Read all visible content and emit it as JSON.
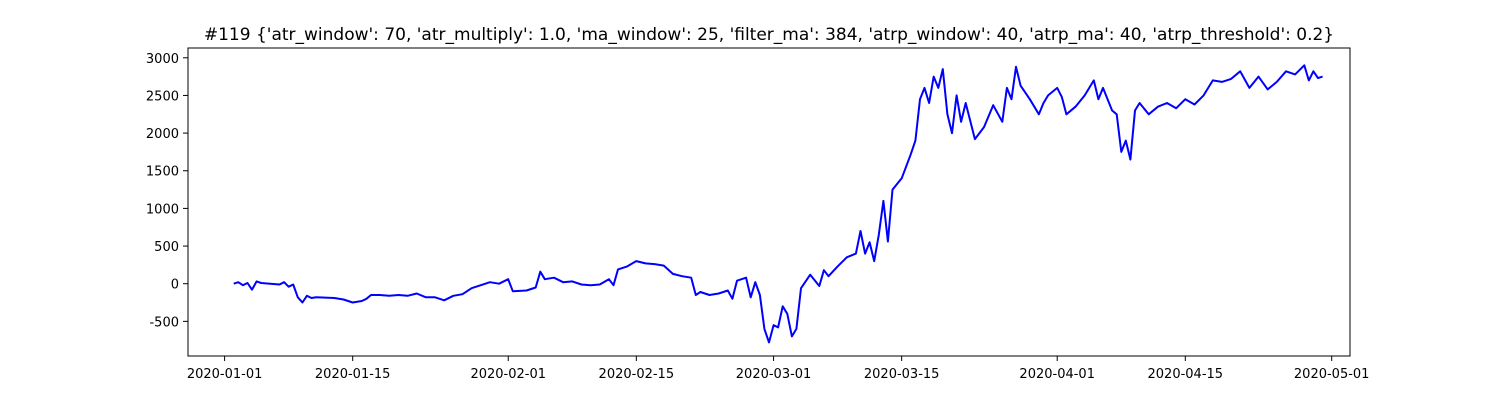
{
  "chart_data": {
    "type": "line",
    "title": "#119 {'atr_window': 70, 'atr_multiply': 1.0, 'ma_window': 25, 'filter_ma': 384, 'atrp_window': 40, 'atrp_ma': 40, 'atrp_threshold': 0.2}",
    "xlabel": "",
    "ylabel": "",
    "x_ticks": [
      "2020-01-01",
      "2020-01-15",
      "2020-02-01",
      "2020-02-15",
      "2020-03-01",
      "2020-03-15",
      "2020-04-01",
      "2020-04-15",
      "2020-05-01"
    ],
    "y_ticks": [
      -500,
      0,
      500,
      1000,
      1500,
      2000,
      2500,
      3000
    ],
    "xlim": [
      "2019-12-28",
      "2020-05-03"
    ],
    "ylim": [
      -960,
      3130
    ],
    "grid": false,
    "series": [
      {
        "color": "#0000ff",
        "points": [
          [
            "2020-01-02",
            0
          ],
          [
            "2020-01-02T12",
            20
          ],
          [
            "2020-01-03",
            -20
          ],
          [
            "2020-01-03T12",
            10
          ],
          [
            "2020-01-04",
            -80
          ],
          [
            "2020-01-04T12",
            30
          ],
          [
            "2020-01-05",
            10
          ],
          [
            "2020-01-06",
            0
          ],
          [
            "2020-01-07",
            -10
          ],
          [
            "2020-01-07T12",
            20
          ],
          [
            "2020-01-08",
            -40
          ],
          [
            "2020-01-08T12",
            -10
          ],
          [
            "2020-01-09",
            -180
          ],
          [
            "2020-01-09T12",
            -250
          ],
          [
            "2020-01-10",
            -160
          ],
          [
            "2020-01-10T12",
            -190
          ],
          [
            "2020-01-11",
            -180
          ],
          [
            "2020-01-13",
            -190
          ],
          [
            "2020-01-14",
            -210
          ],
          [
            "2020-01-15",
            -250
          ],
          [
            "2020-01-16",
            -230
          ],
          [
            "2020-01-16T12",
            -200
          ],
          [
            "2020-01-17",
            -150
          ],
          [
            "2020-01-18",
            -150
          ],
          [
            "2020-01-19",
            -160
          ],
          [
            "2020-01-20",
            -150
          ],
          [
            "2020-01-21",
            -160
          ],
          [
            "2020-01-22",
            -130
          ],
          [
            "2020-01-23",
            -180
          ],
          [
            "2020-01-24",
            -180
          ],
          [
            "2020-01-25",
            -220
          ],
          [
            "2020-01-26",
            -160
          ],
          [
            "2020-01-27",
            -140
          ],
          [
            "2020-01-28",
            -60
          ],
          [
            "2020-01-29",
            -20
          ],
          [
            "2020-01-30",
            20
          ],
          [
            "2020-01-31",
            0
          ],
          [
            "2020-02-01",
            60
          ],
          [
            "2020-02-01T12",
            -100
          ],
          [
            "2020-02-03",
            -90
          ],
          [
            "2020-02-04",
            -50
          ],
          [
            "2020-02-04T12",
            160
          ],
          [
            "2020-02-05",
            60
          ],
          [
            "2020-02-06",
            80
          ],
          [
            "2020-02-07",
            20
          ],
          [
            "2020-02-08",
            30
          ],
          [
            "2020-02-09",
            -10
          ],
          [
            "2020-02-10",
            -20
          ],
          [
            "2020-02-11",
            -10
          ],
          [
            "2020-02-12",
            60
          ],
          [
            "2020-02-12T12",
            -20
          ],
          [
            "2020-02-13",
            190
          ],
          [
            "2020-02-14",
            230
          ],
          [
            "2020-02-15",
            300
          ],
          [
            "2020-02-16",
            270
          ],
          [
            "2020-02-17",
            260
          ],
          [
            "2020-02-18",
            240
          ],
          [
            "2020-02-19",
            130
          ],
          [
            "2020-02-20",
            100
          ],
          [
            "2020-02-21",
            80
          ],
          [
            "2020-02-21T12",
            -150
          ],
          [
            "2020-02-22",
            -110
          ],
          [
            "2020-02-23",
            -150
          ],
          [
            "2020-02-24",
            -130
          ],
          [
            "2020-02-25",
            -90
          ],
          [
            "2020-02-25T12",
            -200
          ],
          [
            "2020-02-26",
            40
          ],
          [
            "2020-02-27",
            80
          ],
          [
            "2020-02-27T12",
            -180
          ],
          [
            "2020-02-28",
            20
          ],
          [
            "2020-02-28T12",
            -150
          ],
          [
            "2020-02-29",
            -600
          ],
          [
            "2020-02-29T12",
            -780
          ],
          [
            "2020-03-01",
            -550
          ],
          [
            "2020-03-01T12",
            -580
          ],
          [
            "2020-03-02",
            -300
          ],
          [
            "2020-03-02T12",
            -400
          ],
          [
            "2020-03-03",
            -700
          ],
          [
            "2020-03-03T12",
            -600
          ],
          [
            "2020-03-04",
            -60
          ],
          [
            "2020-03-05",
            120
          ],
          [
            "2020-03-06",
            -30
          ],
          [
            "2020-03-06T12",
            180
          ],
          [
            "2020-03-07",
            100
          ],
          [
            "2020-03-08",
            230
          ],
          [
            "2020-03-09",
            350
          ],
          [
            "2020-03-10",
            400
          ],
          [
            "2020-03-10T12",
            700
          ],
          [
            "2020-03-11",
            400
          ],
          [
            "2020-03-11T12",
            550
          ],
          [
            "2020-03-12",
            300
          ],
          [
            "2020-03-12T12",
            650
          ],
          [
            "2020-03-13",
            1100
          ],
          [
            "2020-03-13T12",
            560
          ],
          [
            "2020-03-14",
            1250
          ],
          [
            "2020-03-15",
            1400
          ],
          [
            "2020-03-16",
            1720
          ],
          [
            "2020-03-16T12",
            1900
          ],
          [
            "2020-03-17",
            2450
          ],
          [
            "2020-03-17T12",
            2600
          ],
          [
            "2020-03-18",
            2400
          ],
          [
            "2020-03-18T12",
            2750
          ],
          [
            "2020-03-19",
            2600
          ],
          [
            "2020-03-19T12",
            2850
          ],
          [
            "2020-03-20",
            2250
          ],
          [
            "2020-03-20T12",
            2000
          ],
          [
            "2020-03-21",
            2500
          ],
          [
            "2020-03-21T12",
            2150
          ],
          [
            "2020-03-22",
            2400
          ],
          [
            "2020-03-23",
            1920
          ],
          [
            "2020-03-24",
            2080
          ],
          [
            "2020-03-25",
            2370
          ],
          [
            "2020-03-26",
            2150
          ],
          [
            "2020-03-26T12",
            2600
          ],
          [
            "2020-03-27",
            2450
          ],
          [
            "2020-03-27T12",
            2880
          ],
          [
            "2020-03-28",
            2630
          ],
          [
            "2020-03-29",
            2450
          ],
          [
            "2020-03-30",
            2250
          ],
          [
            "2020-03-30T12",
            2400
          ],
          [
            "2020-03-31",
            2500
          ],
          [
            "2020-04-01",
            2600
          ],
          [
            "2020-04-01T12",
            2480
          ],
          [
            "2020-04-02",
            2250
          ],
          [
            "2020-04-03",
            2350
          ],
          [
            "2020-04-04",
            2500
          ],
          [
            "2020-04-05",
            2700
          ],
          [
            "2020-04-05T12",
            2450
          ],
          [
            "2020-04-06",
            2600
          ],
          [
            "2020-04-07",
            2300
          ],
          [
            "2020-04-07T12",
            2250
          ],
          [
            "2020-04-08",
            1750
          ],
          [
            "2020-04-08T12",
            1900
          ],
          [
            "2020-04-09",
            1650
          ],
          [
            "2020-04-09T12",
            2300
          ],
          [
            "2020-04-10",
            2400
          ],
          [
            "2020-04-11",
            2250
          ],
          [
            "2020-04-12",
            2350
          ],
          [
            "2020-04-13",
            2400
          ],
          [
            "2020-04-14",
            2330
          ],
          [
            "2020-04-15",
            2450
          ],
          [
            "2020-04-16",
            2380
          ],
          [
            "2020-04-17",
            2500
          ],
          [
            "2020-04-18",
            2700
          ],
          [
            "2020-04-19",
            2680
          ],
          [
            "2020-04-20",
            2720
          ],
          [
            "2020-04-21",
            2820
          ],
          [
            "2020-04-22",
            2600
          ],
          [
            "2020-04-23",
            2750
          ],
          [
            "2020-04-24",
            2580
          ],
          [
            "2020-04-25",
            2680
          ],
          [
            "2020-04-26",
            2820
          ],
          [
            "2020-04-27",
            2780
          ],
          [
            "2020-04-28",
            2900
          ],
          [
            "2020-04-28T12",
            2700
          ],
          [
            "2020-04-29",
            2820
          ],
          [
            "2020-04-29T12",
            2730
          ],
          [
            "2020-04-30",
            2750
          ]
        ]
      }
    ]
  }
}
